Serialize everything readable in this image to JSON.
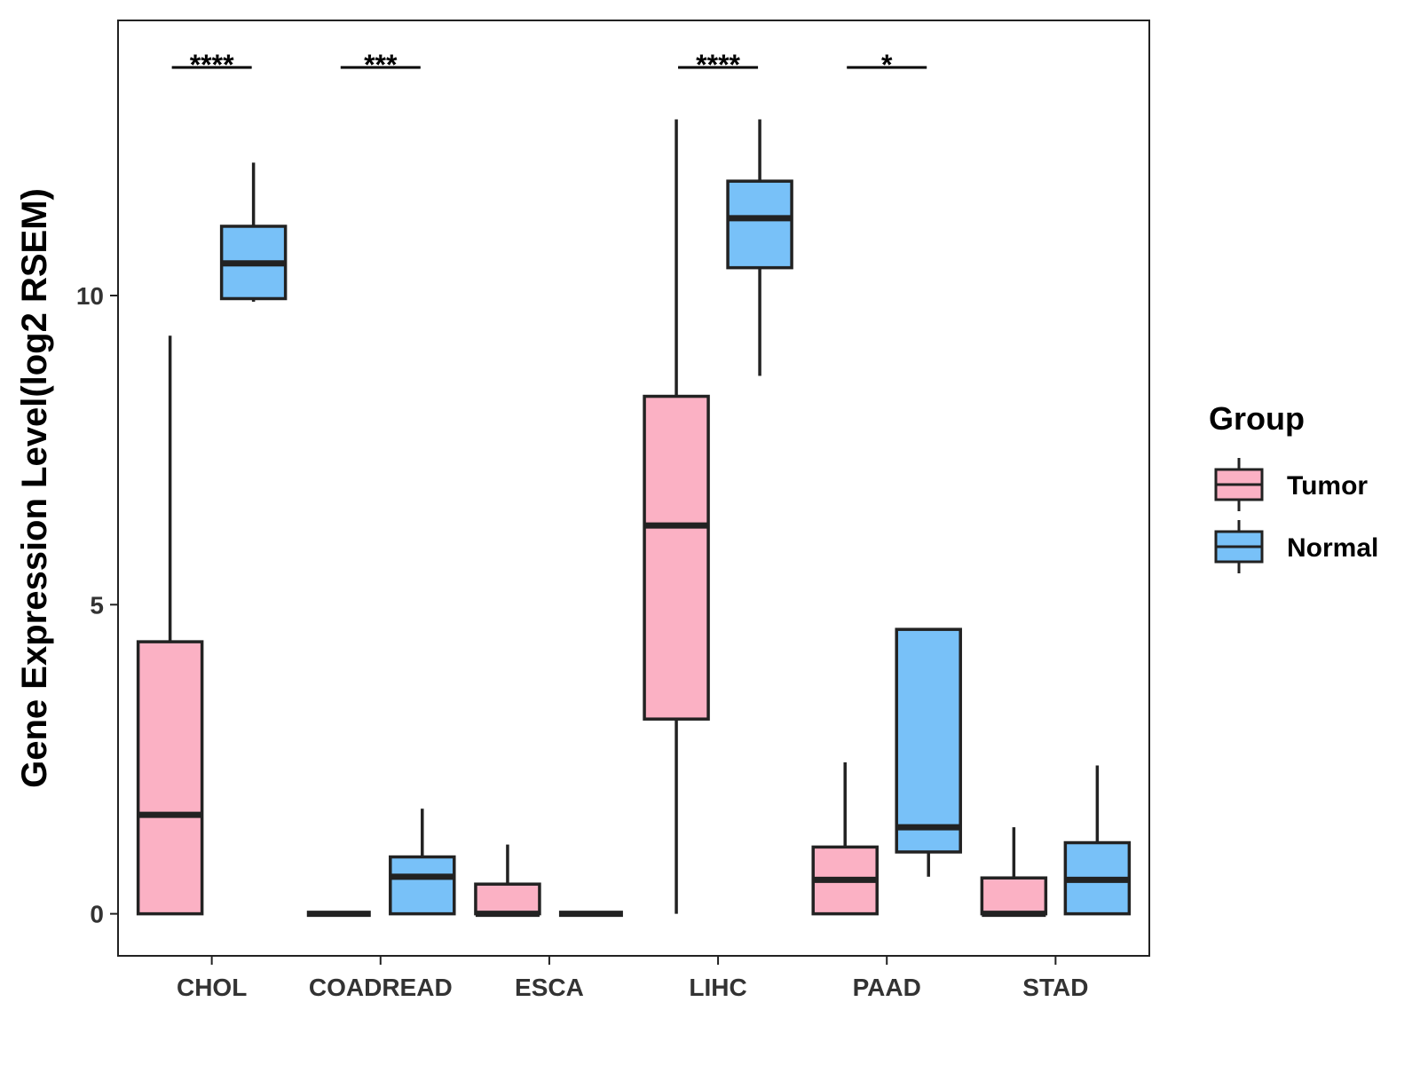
{
  "chart_data": {
    "type": "boxplot",
    "title": "",
    "xlabel": "",
    "ylabel": "Gene Expression Level(log2 RSEM)",
    "ylim": [
      -0.68,
      14.45
    ],
    "yticks": [
      0,
      5,
      10
    ],
    "grid": false,
    "categories": [
      "CHOL",
      "COADREAD",
      "ESCA",
      "LIHC",
      "PAAD",
      "STAD"
    ],
    "legend": {
      "title": "Group",
      "position": "right",
      "entries": [
        "Tumor",
        "Normal"
      ]
    },
    "colors": {
      "Tumor": "#FBB1C4",
      "Normal": "#78C1F8",
      "stroke": "#222222"
    },
    "series": [
      {
        "name": "Tumor",
        "boxes": [
          {
            "category": "CHOL",
            "min": 0,
            "q1": 0,
            "median": 1.6,
            "q3": 4.4,
            "max": 9.35
          },
          {
            "category": "COADREAD",
            "min": 0,
            "q1": 0,
            "median": 0,
            "q3": 0,
            "max": 0
          },
          {
            "category": "ESCA",
            "min": 0,
            "q1": 0,
            "median": 0,
            "q3": 0.48,
            "max": 1.12
          },
          {
            "category": "LIHC",
            "min": 0,
            "q1": 3.15,
            "median": 6.28,
            "q3": 8.37,
            "max": 12.85
          },
          {
            "category": "PAAD",
            "min": 0,
            "q1": 0,
            "median": 0.55,
            "q3": 1.08,
            "max": 2.45
          },
          {
            "category": "STAD",
            "min": 0,
            "q1": 0,
            "median": 0,
            "q3": 0.58,
            "max": 1.4
          }
        ]
      },
      {
        "name": "Normal",
        "boxes": [
          {
            "category": "CHOL",
            "min": 9.9,
            "q1": 9.95,
            "median": 10.52,
            "q3": 11.12,
            "max": 12.15
          },
          {
            "category": "COADREAD",
            "min": 0,
            "q1": 0,
            "median": 0.6,
            "q3": 0.92,
            "max": 1.7
          },
          {
            "category": "ESCA",
            "min": 0,
            "q1": 0,
            "median": 0,
            "q3": 0,
            "max": 0
          },
          {
            "category": "LIHC",
            "min": 8.7,
            "q1": 10.45,
            "median": 11.25,
            "q3": 11.85,
            "max": 12.85
          },
          {
            "category": "PAAD",
            "min": 0.6,
            "q1": 1,
            "median": 1.4,
            "q3": 4.6,
            "max": 4.6
          },
          {
            "category": "STAD",
            "min": 0,
            "q1": 0,
            "median": 0.55,
            "q3": 1.15,
            "max": 2.4
          }
        ]
      }
    ],
    "annotations": [
      {
        "category": "CHOL",
        "label": "****"
      },
      {
        "category": "COADREAD",
        "label": "***"
      },
      {
        "category": "LIHC",
        "label": "****"
      },
      {
        "category": "PAAD",
        "label": "*"
      }
    ]
  }
}
